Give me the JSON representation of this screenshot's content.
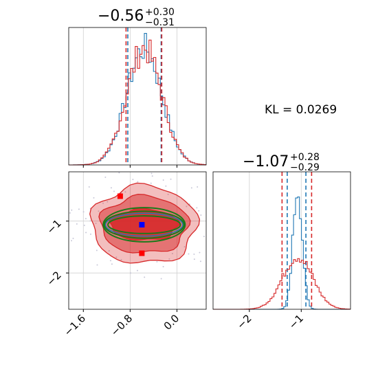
{
  "chart_data": {
    "type": "corner",
    "kl_label": "KL = 0.0269",
    "parameters": [
      {
        "median_label": "−0.56",
        "upper_err": "+0.30",
        "lower_err": "−0.31",
        "median": -0.56,
        "upper": 0.3,
        "lower": -0.31
      },
      {
        "median_label": "−1.07",
        "upper_err": "+0.28",
        "lower_err": "−0.29",
        "median": -1.07,
        "upper": 0.28,
        "lower": -0.29
      }
    ],
    "x_ticks": [
      {
        "value": -1.6,
        "label": "−1.6"
      },
      {
        "value": -0.8,
        "label": "−0.8"
      },
      {
        "value": 0.0,
        "label": "0.0"
      }
    ],
    "y_ticks": [
      {
        "value": -1,
        "label": "−1"
      },
      {
        "value": -2,
        "label": "−2"
      }
    ],
    "x2_ticks": [
      {
        "value": -2,
        "label": "−2"
      },
      {
        "value": -1,
        "label": "−1"
      }
    ],
    "xlim": [
      -1.85,
      0.5
    ],
    "ylim": [
      -2.7,
      -0.05
    ],
    "x2lim": [
      -2.7,
      -0.05
    ],
    "series": [
      {
        "color": "#1f77b4",
        "p1_hist": {
          "center": -0.56,
          "sigma": 0.3
        },
        "p2_hist": {
          "center": -1.07,
          "sigma": 0.09
        },
        "p1_quantiles": [
          -0.84,
          -0.56,
          -0.27
        ],
        "p2_quantiles": [
          -1.27,
          -1.07,
          -0.91
        ]
      },
      {
        "color": "#d62728",
        "p1_hist": {
          "center": -0.56,
          "sigma": 0.3
        },
        "p2_hist": {
          "center": -1.07,
          "sigma": 0.29
        },
        "p1_quantiles": [
          -0.87,
          -0.56,
          -0.26
        ],
        "p2_quantiles": [
          -1.37,
          -1.07,
          -0.8
        ]
      }
    ],
    "markers": [
      {
        "color": "#ff0000",
        "x": -0.97,
        "y": -0.52
      },
      {
        "color": "#ff0000",
        "x": -0.6,
        "y": -1.62
      },
      {
        "color": "#0000ff",
        "x": -0.6,
        "y": -1.07
      }
    ],
    "ellipses_green": [
      {
        "cx": -0.56,
        "cy": -1.07,
        "rx": 0.62,
        "ry": 0.17
      },
      {
        "cx": -0.56,
        "cy": -1.07,
        "rx": 0.68,
        "ry": 0.26
      },
      {
        "cx": -0.56,
        "cy": -1.07,
        "rx": 0.7,
        "ry": 0.33
      }
    ],
    "red_contours": [
      {
        "cx": -0.56,
        "cy": -1.07,
        "rx": 0.58,
        "ry": 0.3,
        "opacity": 0.85
      },
      {
        "cx": -0.56,
        "cy": -1.07,
        "rx": 0.75,
        "ry": 0.55,
        "opacity": 0.5
      },
      {
        "cx": -0.56,
        "cy": -1.07,
        "rx": 0.9,
        "ry": 0.75,
        "opacity": 0.3
      }
    ],
    "grid": true
  }
}
